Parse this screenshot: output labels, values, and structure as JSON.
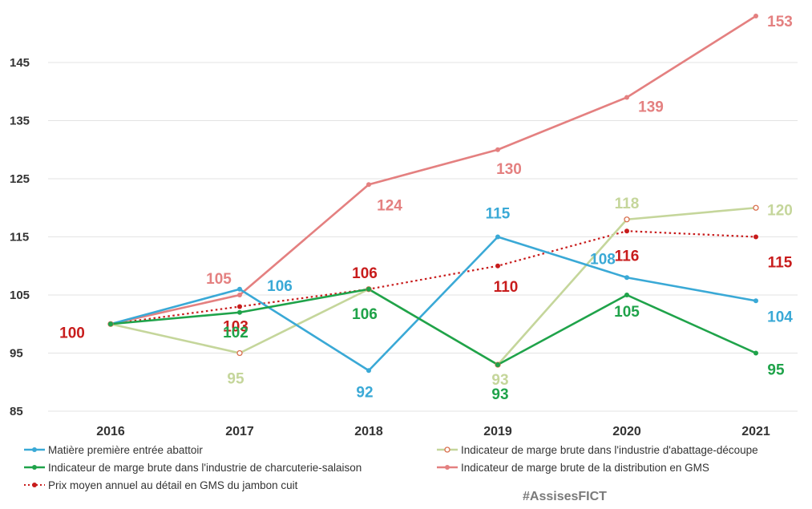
{
  "chart_data": {
    "type": "line",
    "title": "",
    "xlabel": "",
    "ylabel": "",
    "categories": [
      "2016",
      "2017",
      "2018",
      "2019",
      "2020",
      "2021"
    ],
    "y_ticks": [
      "85",
      "95",
      "105",
      "115",
      "125",
      "135",
      "145"
    ],
    "ylim": [
      85,
      155
    ],
    "grid": "horizontal",
    "legend_position": "bottom",
    "series": [
      {
        "name": "Matière première entrée abattoir",
        "color": "#3aa9d6",
        "style": "solid",
        "marker": "filled",
        "values": [
          100,
          106,
          92,
          115,
          108,
          104
        ],
        "labels": [
          "",
          "106",
          "92",
          "115",
          "108",
          "104"
        ]
      },
      {
        "name": "Indicateur de marge brute dans l'industrie d'abattage-découpe",
        "color": "#c5d69b",
        "style": "solid",
        "marker": "hollow",
        "values": [
          100,
          95,
          106,
          93,
          118,
          120
        ],
        "labels": [
          "",
          "95",
          "106",
          "93",
          "118",
          "120"
        ]
      },
      {
        "name": "Indicateur de marge brute dans l'industrie de charcuterie-salaison",
        "color": "#1fa34a",
        "style": "solid",
        "marker": "filled",
        "values": [
          100,
          102,
          106,
          93,
          105,
          95
        ],
        "labels": [
          "",
          "102",
          "106",
          "93",
          "105",
          "95"
        ]
      },
      {
        "name": "Indicateur de marge brute de la distribution en GMS",
        "color": "#e48080",
        "style": "solid",
        "marker": "filled",
        "values": [
          100,
          105,
          124,
          130,
          139,
          153
        ],
        "labels": [
          "",
          "105",
          "124",
          "130",
          "139",
          "153"
        ]
      },
      {
        "name": "Prix moyen annuel au détail en GMS du jambon cuit",
        "color": "#c81c1c",
        "style": "dotted",
        "marker": "filled",
        "values": [
          100,
          103,
          106,
          110,
          116,
          115
        ],
        "labels": [
          "100",
          "103",
          "106",
          "110",
          "116",
          "115"
        ]
      }
    ]
  },
  "watermark": "#AssisesFICT"
}
